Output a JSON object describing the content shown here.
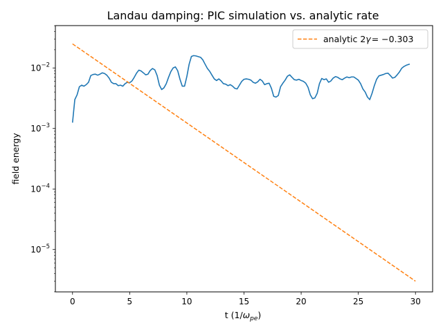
{
  "chart_data": {
    "type": "line",
    "title": "Landau damping: PIC simulation vs. analytic rate",
    "xlabel_main": "t (1/",
    "xlabel_omega": "ω",
    "xlabel_sub": "pe",
    "xlabel_close": ")",
    "ylabel": "field energy",
    "xlim": [
      -1.5,
      31.5
    ],
    "ylim_log10": [
      -5.7,
      -1.3
    ],
    "yscale": "log",
    "grid": false,
    "legend_position": "top-right",
    "x_ticks": [
      {
        "value": 0,
        "label": "0"
      },
      {
        "value": 5,
        "label": "5"
      },
      {
        "value": 10,
        "label": "10"
      },
      {
        "value": 15,
        "label": "15"
      },
      {
        "value": 20,
        "label": "20"
      },
      {
        "value": 25,
        "label": "25"
      },
      {
        "value": 30,
        "label": "30"
      }
    ],
    "y_ticks": [
      {
        "exp": -5,
        "mantissa": "10",
        "sup": "−5"
      },
      {
        "exp": -4,
        "mantissa": "10",
        "sup": "−4"
      },
      {
        "exp": -3,
        "mantissa": "10",
        "sup": "−3"
      },
      {
        "exp": -2,
        "mantissa": "10",
        "sup": "−2"
      }
    ],
    "series": [
      {
        "name": "",
        "color": "#1f77b4",
        "style": "solid",
        "points": [
          [
            0.0,
            0.00125
          ],
          [
            0.2,
            0.003
          ],
          [
            0.4,
            0.0036
          ],
          [
            0.6,
            0.0049
          ],
          [
            0.8,
            0.0052
          ],
          [
            1.0,
            0.005
          ],
          [
            1.2,
            0.0053
          ],
          [
            1.4,
            0.0058
          ],
          [
            1.6,
            0.0075
          ],
          [
            1.8,
            0.0078
          ],
          [
            2.0,
            0.0079
          ],
          [
            2.2,
            0.0076
          ],
          [
            2.4,
            0.0079
          ],
          [
            2.6,
            0.0083
          ],
          [
            2.8,
            0.0081
          ],
          [
            3.0,
            0.0076
          ],
          [
            3.2,
            0.0068
          ],
          [
            3.4,
            0.0058
          ],
          [
            3.6,
            0.0055
          ],
          [
            3.8,
            0.0055
          ],
          [
            4.0,
            0.0051
          ],
          [
            4.2,
            0.0052
          ],
          [
            4.4,
            0.005
          ],
          [
            4.6,
            0.0055
          ],
          [
            4.8,
            0.0058
          ],
          [
            5.0,
            0.0057
          ],
          [
            5.2,
            0.0061
          ],
          [
            5.4,
            0.007
          ],
          [
            5.6,
            0.0082
          ],
          [
            5.8,
            0.0092
          ],
          [
            6.0,
            0.0089
          ],
          [
            6.2,
            0.0083
          ],
          [
            6.4,
            0.0077
          ],
          [
            6.6,
            0.0079
          ],
          [
            6.8,
            0.0091
          ],
          [
            7.0,
            0.0098
          ],
          [
            7.2,
            0.0093
          ],
          [
            7.4,
            0.0075
          ],
          [
            7.6,
            0.0052
          ],
          [
            7.8,
            0.0044
          ],
          [
            8.0,
            0.0047
          ],
          [
            8.2,
            0.0055
          ],
          [
            8.4,
            0.007
          ],
          [
            8.6,
            0.0087
          ],
          [
            8.8,
            0.01
          ],
          [
            9.0,
            0.0104
          ],
          [
            9.2,
            0.009
          ],
          [
            9.4,
            0.0065
          ],
          [
            9.6,
            0.005
          ],
          [
            9.8,
            0.005
          ],
          [
            10.0,
            0.0072
          ],
          [
            10.2,
            0.0115
          ],
          [
            10.4,
            0.0155
          ],
          [
            10.6,
            0.016
          ],
          [
            10.8,
            0.0158
          ],
          [
            11.0,
            0.0154
          ],
          [
            11.2,
            0.015
          ],
          [
            11.4,
            0.0136
          ],
          [
            11.6,
            0.0115
          ],
          [
            11.8,
            0.0098
          ],
          [
            12.0,
            0.0088
          ],
          [
            12.2,
            0.0076
          ],
          [
            12.4,
            0.0066
          ],
          [
            12.6,
            0.0062
          ],
          [
            12.8,
            0.0066
          ],
          [
            13.0,
            0.0061
          ],
          [
            13.2,
            0.0055
          ],
          [
            13.4,
            0.0054
          ],
          [
            13.6,
            0.0051
          ],
          [
            13.8,
            0.0053
          ],
          [
            14.0,
            0.005
          ],
          [
            14.2,
            0.0046
          ],
          [
            14.4,
            0.0045
          ],
          [
            14.6,
            0.0052
          ],
          [
            14.8,
            0.006
          ],
          [
            15.0,
            0.0065
          ],
          [
            15.2,
            0.0066
          ],
          [
            15.4,
            0.0065
          ],
          [
            15.6,
            0.0063
          ],
          [
            15.8,
            0.0058
          ],
          [
            16.0,
            0.0056
          ],
          [
            16.2,
            0.0059
          ],
          [
            16.4,
            0.0065
          ],
          [
            16.6,
            0.0061
          ],
          [
            16.8,
            0.0053
          ],
          [
            17.0,
            0.0055
          ],
          [
            17.2,
            0.0056
          ],
          [
            17.4,
            0.0046
          ],
          [
            17.6,
            0.0034
          ],
          [
            17.8,
            0.0033
          ],
          [
            18.0,
            0.0035
          ],
          [
            18.2,
            0.0049
          ],
          [
            18.4,
            0.0056
          ],
          [
            18.6,
            0.0063
          ],
          [
            18.8,
            0.0073
          ],
          [
            19.0,
            0.0077
          ],
          [
            19.2,
            0.007
          ],
          [
            19.4,
            0.0064
          ],
          [
            19.6,
            0.0063
          ],
          [
            19.8,
            0.0065
          ],
          [
            20.0,
            0.0062
          ],
          [
            20.2,
            0.006
          ],
          [
            20.4,
            0.0056
          ],
          [
            20.6,
            0.0048
          ],
          [
            20.8,
            0.0036
          ],
          [
            21.0,
            0.0031
          ],
          [
            21.2,
            0.0032
          ],
          [
            21.4,
            0.0038
          ],
          [
            21.6,
            0.0055
          ],
          [
            21.8,
            0.0067
          ],
          [
            22.0,
            0.0064
          ],
          [
            22.2,
            0.0066
          ],
          [
            22.4,
            0.0058
          ],
          [
            22.6,
            0.0061
          ],
          [
            22.8,
            0.0068
          ],
          [
            23.0,
            0.0072
          ],
          [
            23.2,
            0.007
          ],
          [
            23.4,
            0.0066
          ],
          [
            23.6,
            0.0064
          ],
          [
            23.8,
            0.0068
          ],
          [
            24.0,
            0.0071
          ],
          [
            24.2,
            0.0069
          ],
          [
            24.4,
            0.0071
          ],
          [
            24.6,
            0.0071
          ],
          [
            24.8,
            0.0067
          ],
          [
            25.0,
            0.0063
          ],
          [
            25.2,
            0.0055
          ],
          [
            25.4,
            0.0045
          ],
          [
            25.6,
            0.004
          ],
          [
            25.8,
            0.0033
          ],
          [
            26.0,
            0.003
          ],
          [
            26.2,
            0.0038
          ],
          [
            26.4,
            0.0051
          ],
          [
            26.6,
            0.0065
          ],
          [
            26.8,
            0.0074
          ],
          [
            27.0,
            0.0076
          ],
          [
            27.2,
            0.0078
          ],
          [
            27.4,
            0.0081
          ],
          [
            27.6,
            0.0082
          ],
          [
            27.8,
            0.0075
          ],
          [
            28.0,
            0.0068
          ],
          [
            28.2,
            0.007
          ],
          [
            28.4,
            0.0077
          ],
          [
            28.6,
            0.0086
          ],
          [
            28.8,
            0.0099
          ],
          [
            29.0,
            0.0106
          ],
          [
            29.2,
            0.0111
          ],
          [
            29.5,
            0.0116
          ]
        ]
      },
      {
        "name_prefix": "analytic 2",
        "name_gamma": "γ",
        "name_suffix": "= −0.303",
        "color": "#ff7f0e",
        "style": "dashed",
        "points": [
          [
            0.0,
            0.025
          ],
          [
            30.0,
            3e-06
          ]
        ]
      }
    ]
  }
}
